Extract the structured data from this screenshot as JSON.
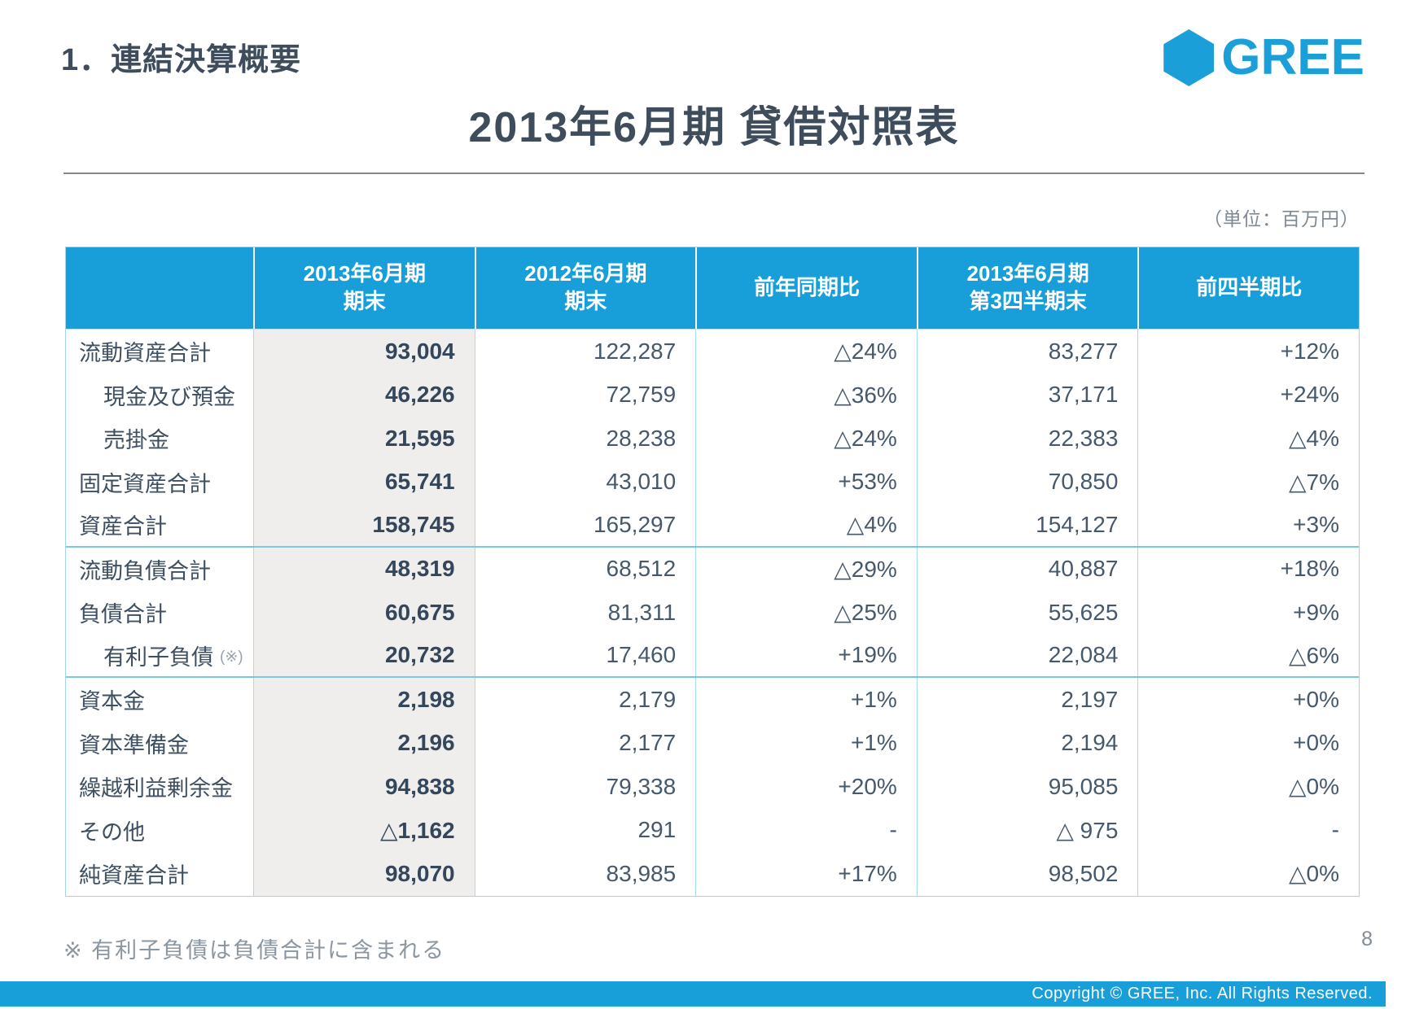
{
  "page": {
    "section_title": "1．連結決算概要",
    "main_title": "2013年6月期 貸借対照表",
    "unit_note": "（単位：百万円）",
    "footnote": "※ 有利子負債は負債合計に含まれる",
    "page_number": "8",
    "copyright": "Copyright © GREE, Inc. All Rights Reserved."
  },
  "logo": {
    "icon": "hexagon-icon",
    "text": "GREE",
    "color": "#1B9FD8"
  },
  "colors": {
    "brand_blue": "#189ED8",
    "table_border_blue": "#A8DAF2",
    "section_divider_blue": "#7CC7E9",
    "current_column_gray": "#EFEEEC",
    "text_dark": "#3E4C5C",
    "text_gray": "#8B96A1"
  },
  "table": {
    "columns": [
      "",
      "2013年6月期\n期末",
      "2012年6月期\n期末",
      "前年同期比",
      "2013年6月期\n第3四半期末",
      "前四半期比"
    ],
    "rows": [
      {
        "label": "流動資産合計",
        "indent": false,
        "note": "",
        "values": [
          "93,004",
          "122,287",
          "△24%",
          "83,277",
          "+12%"
        ],
        "section_end": false
      },
      {
        "label": "現金及び預金",
        "indent": true,
        "note": "",
        "values": [
          "46,226",
          "72,759",
          "△36%",
          "37,171",
          "+24%"
        ],
        "section_end": false
      },
      {
        "label": "売掛金",
        "indent": true,
        "note": "",
        "values": [
          "21,595",
          "28,238",
          "△24%",
          "22,383",
          "△4%"
        ],
        "section_end": false
      },
      {
        "label": "固定資産合計",
        "indent": false,
        "note": "",
        "values": [
          "65,741",
          "43,010",
          "+53%",
          "70,850",
          "△7%"
        ],
        "section_end": false
      },
      {
        "label": "資産合計",
        "indent": false,
        "note": "",
        "values": [
          "158,745",
          "165,297",
          "△4%",
          "154,127",
          "+3%"
        ],
        "section_end": true
      },
      {
        "label": "流動負債合計",
        "indent": false,
        "note": "",
        "values": [
          "48,319",
          "68,512",
          "△29%",
          "40,887",
          "+18%"
        ],
        "section_end": false
      },
      {
        "label": "負債合計",
        "indent": false,
        "note": "",
        "values": [
          "60,675",
          "81,311",
          "△25%",
          "55,625",
          "+9%"
        ],
        "section_end": false
      },
      {
        "label": "有利子負債",
        "indent": true,
        "note": "(※)",
        "values": [
          "20,732",
          "17,460",
          "+19%",
          "22,084",
          "△6%"
        ],
        "section_end": true
      },
      {
        "label": "資本金",
        "indent": false,
        "note": "",
        "values": [
          "2,198",
          "2,179",
          "+1%",
          "2,197",
          "+0%"
        ],
        "section_end": false
      },
      {
        "label": "資本準備金",
        "indent": false,
        "note": "",
        "values": [
          "2,196",
          "2,177",
          "+1%",
          "2,194",
          "+0%"
        ],
        "section_end": false
      },
      {
        "label": "繰越利益剰余金",
        "indent": false,
        "note": "",
        "values": [
          "94,838",
          "79,338",
          "+20%",
          "95,085",
          "△0%"
        ],
        "section_end": false
      },
      {
        "label": "その他",
        "indent": false,
        "note": "",
        "values": [
          "△1,162",
          "291",
          "-",
          "△ 975",
          "-"
        ],
        "section_end": false
      },
      {
        "label": "純資産合計",
        "indent": false,
        "note": "",
        "values": [
          "98,070",
          "83,985",
          "+17%",
          "98,502",
          "△0%"
        ],
        "section_end": false
      }
    ]
  }
}
